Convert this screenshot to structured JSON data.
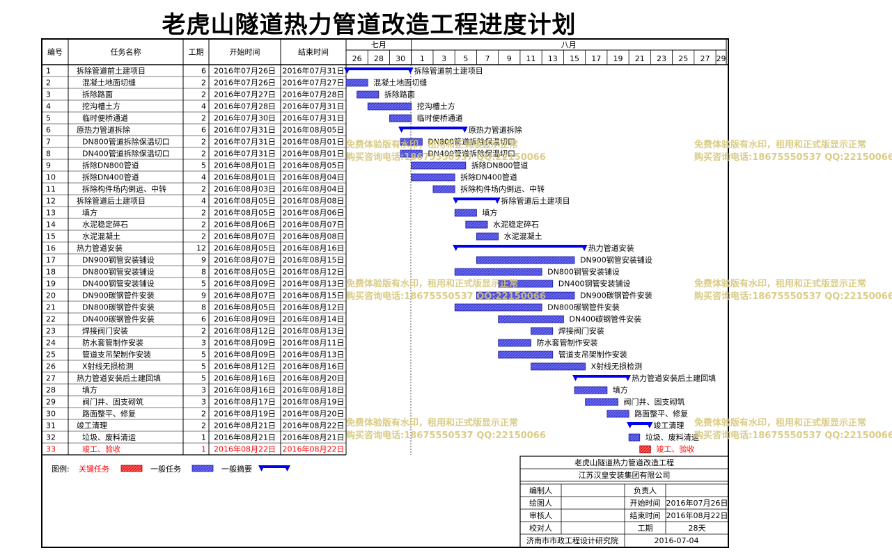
{
  "title": "老虎山隧道热力管道改造工程进度计划",
  "headers": {
    "id": "编号",
    "name": "任务名称",
    "dur": "工期",
    "start": "开始时间",
    "end": "结束时间"
  },
  "months": [
    "七月",
    "八月"
  ],
  "day_ticks": [
    "26",
    "28",
    "30",
    "1",
    "3",
    "5",
    "7",
    "9",
    "11",
    "13",
    "15",
    "17",
    "19",
    "21",
    "23",
    "25",
    "27",
    "29"
  ],
  "chart_data": {
    "type": "gantt",
    "title": "老虎山隧道热力管道改造工程进度计划",
    "timeline_start": "2016-07-26",
    "tasks": [
      {
        "id": "1",
        "name": "拆除管道前土建项目",
        "dur": "6",
        "start": "2016年07月26日",
        "end": "2016年07月31日",
        "s": "2016-07-26",
        "e": "2016-07-31",
        "kind": "summary",
        "indent": 0
      },
      {
        "id": "2",
        "name": "混凝土地面切缝",
        "dur": "2",
        "start": "2016年07月26日",
        "end": "2016年07月27日",
        "s": "2016-07-26",
        "e": "2016-07-27",
        "kind": "task",
        "indent": 1
      },
      {
        "id": "3",
        "name": "拆除路面",
        "dur": "2",
        "start": "2016年07月27日",
        "end": "2016年07月28日",
        "s": "2016-07-27",
        "e": "2016-07-28",
        "kind": "task",
        "indent": 1
      },
      {
        "id": "4",
        "name": "挖沟槽土方",
        "dur": "4",
        "start": "2016年07月28日",
        "end": "2016年07月31日",
        "s": "2016-07-28",
        "e": "2016-07-31",
        "kind": "task",
        "indent": 1
      },
      {
        "id": "5",
        "name": "临时便桥通道",
        "dur": "2",
        "start": "2016年07月30日",
        "end": "2016年07月31日",
        "s": "2016-07-30",
        "e": "2016-07-31",
        "kind": "task",
        "indent": 1
      },
      {
        "id": "6",
        "name": "原热力管道拆除",
        "dur": "6",
        "start": "2016年07月31日",
        "end": "2016年08月05日",
        "s": "2016-07-31",
        "e": "2016-08-05",
        "kind": "summary",
        "indent": 0
      },
      {
        "id": "7",
        "name": "DN800管道拆除保温切口",
        "dur": "2",
        "start": "2016年07月31日",
        "end": "2016年08月01日",
        "s": "2016-07-31",
        "e": "2016-08-01",
        "kind": "task",
        "indent": 1
      },
      {
        "id": "8",
        "name": "DN400管道拆除保温切口",
        "dur": "2",
        "start": "2016年07月31日",
        "end": "2016年08月01日",
        "s": "2016-07-31",
        "e": "2016-08-01",
        "kind": "task",
        "indent": 1
      },
      {
        "id": "9",
        "name": "拆除DN800管道",
        "dur": "5",
        "start": "2016年08月01日",
        "end": "2016年08月05日",
        "s": "2016-08-01",
        "e": "2016-08-05",
        "kind": "task",
        "indent": 1
      },
      {
        "id": "10",
        "name": "拆除DN400管道",
        "dur": "4",
        "start": "2016年08月01日",
        "end": "2016年08月04日",
        "s": "2016-08-01",
        "e": "2016-08-04",
        "kind": "task",
        "indent": 1
      },
      {
        "id": "11",
        "name": "拆除构件场内倒运、中转",
        "dur": "2",
        "start": "2016年08月03日",
        "end": "2016年08月04日",
        "s": "2016-08-03",
        "e": "2016-08-04",
        "kind": "task",
        "indent": 1
      },
      {
        "id": "12",
        "name": "拆除管道后土建项目",
        "dur": "4",
        "start": "2016年08月05日",
        "end": "2016年08月08日",
        "s": "2016-08-05",
        "e": "2016-08-08",
        "kind": "summary",
        "indent": 0
      },
      {
        "id": "13",
        "name": "填方",
        "dur": "2",
        "start": "2016年08月05日",
        "end": "2016年08月06日",
        "s": "2016-08-05",
        "e": "2016-08-06",
        "kind": "task",
        "indent": 1
      },
      {
        "id": "14",
        "name": "水泥稳定碎石",
        "dur": "2",
        "start": "2016年08月06日",
        "end": "2016年08月07日",
        "s": "2016-08-06",
        "e": "2016-08-07",
        "kind": "task",
        "indent": 1
      },
      {
        "id": "15",
        "name": "水泥混凝土",
        "dur": "2",
        "start": "2016年08月07日",
        "end": "2016年08月08日",
        "s": "2016-08-07",
        "e": "2016-08-08",
        "kind": "task",
        "indent": 1
      },
      {
        "id": "16",
        "name": "热力管道安装",
        "dur": "12",
        "start": "2016年08月05日",
        "end": "2016年08月16日",
        "s": "2016-08-05",
        "e": "2016-08-16",
        "kind": "summary",
        "indent": 0
      },
      {
        "id": "17",
        "name": "DN900钢管安装铺设",
        "dur": "9",
        "start": "2016年08月07日",
        "end": "2016年08月15日",
        "s": "2016-08-07",
        "e": "2016-08-15",
        "kind": "task",
        "indent": 1
      },
      {
        "id": "18",
        "name": "DN800钢管安装铺设",
        "dur": "8",
        "start": "2016年08月05日",
        "end": "2016年08月12日",
        "s": "2016-08-05",
        "e": "2016-08-12",
        "kind": "task",
        "indent": 1
      },
      {
        "id": "19",
        "name": "DN400钢管安装铺设",
        "dur": "5",
        "start": "2016年08月09日",
        "end": "2016年08月13日",
        "s": "2016-08-09",
        "e": "2016-08-13",
        "kind": "task",
        "indent": 1
      },
      {
        "id": "20",
        "name": "DN900碳钢管件安装",
        "dur": "9",
        "start": "2016年08月07日",
        "end": "2016年08月15日",
        "s": "2016-08-07",
        "e": "2016-08-15",
        "kind": "task",
        "indent": 1
      },
      {
        "id": "21",
        "name": "DN800碳钢管件安装",
        "dur": "8",
        "start": "2016年08月05日",
        "end": "2016年08月12日",
        "s": "2016-08-05",
        "e": "2016-08-12",
        "kind": "task",
        "indent": 1
      },
      {
        "id": "22",
        "name": "DN400碳钢管件安装",
        "dur": "6",
        "start": "2016年08月09日",
        "end": "2016年08月14日",
        "s": "2016-08-09",
        "e": "2016-08-14",
        "kind": "task",
        "indent": 1
      },
      {
        "id": "23",
        "name": "焊接阀门安装",
        "dur": "2",
        "start": "2016年08月12日",
        "end": "2016年08月13日",
        "s": "2016-08-12",
        "e": "2016-08-13",
        "kind": "task",
        "indent": 1
      },
      {
        "id": "24",
        "name": "防水套管制作安装",
        "dur": "3",
        "start": "2016年08月09日",
        "end": "2016年08月11日",
        "s": "2016-08-09",
        "e": "2016-08-11",
        "kind": "task",
        "indent": 1
      },
      {
        "id": "25",
        "name": "管道支吊架制作安装",
        "dur": "5",
        "start": "2016年08月09日",
        "end": "2016年08月13日",
        "s": "2016-08-09",
        "e": "2016-08-13",
        "kind": "task",
        "indent": 1
      },
      {
        "id": "26",
        "name": "X射线无损检测",
        "dur": "5",
        "start": "2016年08月12日",
        "end": "2016年08月16日",
        "s": "2016-08-12",
        "e": "2016-08-16",
        "kind": "task",
        "indent": 1
      },
      {
        "id": "27",
        "name": "热力管道安装后土建回填",
        "dur": "5",
        "start": "2016年08月16日",
        "end": "2016年08月20日",
        "s": "2016-08-16",
        "e": "2016-08-20",
        "kind": "summary",
        "indent": 0
      },
      {
        "id": "28",
        "name": "填方",
        "dur": "3",
        "start": "2016年08月16日",
        "end": "2016年08月18日",
        "s": "2016-08-16",
        "e": "2016-08-18",
        "kind": "task",
        "indent": 1
      },
      {
        "id": "29",
        "name": "阀门井、固支砌筑",
        "dur": "3",
        "start": "2016年08月17日",
        "end": "2016年08月19日",
        "s": "2016-08-17",
        "e": "2016-08-19",
        "kind": "task",
        "indent": 1
      },
      {
        "id": "30",
        "name": "路面整平、修复",
        "dur": "2",
        "start": "2016年08月19日",
        "end": "2016年08月20日",
        "s": "2016-08-19",
        "e": "2016-08-20",
        "kind": "task",
        "indent": 1
      },
      {
        "id": "31",
        "name": "竣工清理",
        "dur": "2",
        "start": "2016年08月21日",
        "end": "2016年08月22日",
        "s": "2016-08-21",
        "e": "2016-08-22",
        "kind": "summary",
        "indent": 0
      },
      {
        "id": "32",
        "name": "垃圾、废料清运",
        "dur": "1",
        "start": "2016年08月21日",
        "end": "2016年08月21日",
        "s": "2016-08-21",
        "e": "2016-08-21",
        "kind": "task",
        "indent": 1
      },
      {
        "id": "33",
        "name": "竣工、验收",
        "dur": "1",
        "start": "2016年08月22日",
        "end": "2016年08月22日",
        "s": "2016-08-22",
        "e": "2016-08-22",
        "kind": "critical",
        "indent": 1
      }
    ]
  },
  "legend": {
    "label": "图例:",
    "critical": "关键任务",
    "normal": "一般任务",
    "summary": "一般摘要"
  },
  "info": {
    "project": "老虎山隧道热力管道改造工程",
    "company": "江苏汉皇安装集团有限公司",
    "compiler": "编制人",
    "owner": "负责人",
    "drawer": "绘图人",
    "start_label": "开始时间",
    "start_value": "2016年07月26日",
    "reviewer": "审核人",
    "end_label": "结束时间",
    "end_value": "2016年08月22日",
    "checker": "校对人",
    "dur_label": "工期",
    "dur_value": "28天",
    "institute": "济南市市政工程设计研究院",
    "date": "2016-07-04"
  },
  "watermark": {
    "line1": "免费体验版有水印，租用和正式版显示正常",
    "line2": "购买咨询电话:18675550537 QQ:22150066"
  },
  "colors": {
    "summary": "#0000ee",
    "task": "#5a5af0",
    "task_border": "#1c1c9a",
    "critical": "#ff0000"
  }
}
